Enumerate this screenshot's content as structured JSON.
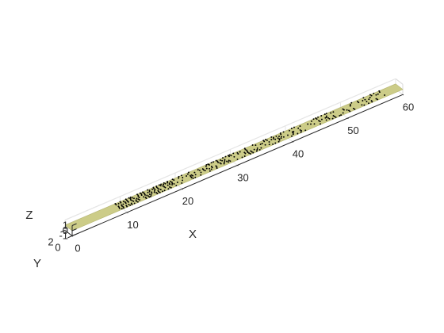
{
  "chart_data": {
    "type": "scatter3d",
    "title": "",
    "xlabel": "X",
    "ylabel": "Y",
    "zlabel": "Z",
    "xlim": [
      0,
      60
    ],
    "ylim": [
      0,
      2
    ],
    "zlim": [
      -1,
      1
    ],
    "x_ticks": [
      0,
      10,
      20,
      30,
      40,
      50,
      60
    ],
    "y_ticks": [
      0,
      2
    ],
    "z_ticks": [
      -1,
      0,
      1
    ],
    "x_tick_labels": [
      "0",
      "10",
      "20",
      "30",
      "40",
      "50",
      "60"
    ],
    "y_tick_labels": [
      "0",
      "2"
    ],
    "z_tick_labels": [
      "-1",
      "0",
      "1"
    ],
    "surface": {
      "z": 0,
      "color": "#cccc88"
    },
    "marker_color": "#000000",
    "grid": true,
    "points_x_range": [
      9,
      57
    ],
    "points_y_range": [
      0,
      2
    ]
  }
}
